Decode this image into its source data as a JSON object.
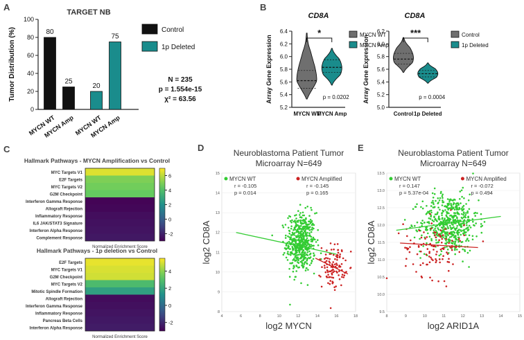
{
  "panel_labels": {
    "a": "A",
    "b": "B",
    "c": "C",
    "d": "D",
    "e": "E"
  },
  "colors": {
    "control": "#111111",
    "teal": "#1a8c8c",
    "gray": "#6f6f6f",
    "green": "#33cc33",
    "red": "#cc2222",
    "heat_high": "#fde725",
    "heat_mid": "#21918c",
    "heat_low": "#440154"
  },
  "chart_data": [
    {
      "id": "A",
      "type": "bar",
      "title": "TARGET NB",
      "ylabel": "Tumor Distribution (%)",
      "ylim": [
        0,
        100
      ],
      "yticks": [
        0,
        20,
        40,
        60,
        80,
        100
      ],
      "groups": [
        {
          "name": "Control",
          "categories": [
            "MYCN WT",
            "MYCN Amp"
          ],
          "values": [
            80,
            25
          ],
          "labels": [
            "80",
            "25"
          ]
        },
        {
          "name": "1p Deleted",
          "categories": [
            "MYCN WT",
            "MYCN Amp"
          ],
          "values": [
            20,
            75
          ],
          "labels": [
            "20",
            "75"
          ]
        }
      ],
      "legend": [
        "Control",
        "1p Deleted"
      ],
      "stats": [
        "N = 235",
        "p = 1.554e-15",
        "χ² = 63.56"
      ]
    },
    {
      "id": "B1",
      "type": "violin",
      "title": "CD8A",
      "ylabel": "Array Gene Expression",
      "ylim": [
        5.2,
        6.4
      ],
      "yticks": [
        "5.2",
        "5.4",
        "5.6",
        "5.8",
        "6.0",
        "6.2",
        "6.4"
      ],
      "categories": [
        "MYCN WT",
        "MYCN Amp"
      ],
      "violins": [
        {
          "min": 5.33,
          "max": 6.37,
          "median": 5.62,
          "q1": 5.5,
          "q3": 5.78,
          "mode": 5.62,
          "width": 0.55
        },
        {
          "min": 5.55,
          "max": 6.13,
          "median": 5.83,
          "q1": 5.75,
          "q3": 5.95,
          "mode": 5.82,
          "width": 0.6
        }
      ],
      "legend": [
        "MYCN WT",
        "MYCN Amp"
      ],
      "significance": "*",
      "p_value": "p = 0.0202"
    },
    {
      "id": "B2",
      "type": "violin",
      "title": "CD8A",
      "ylabel": "Array Gene Expression",
      "ylim": [
        5.0,
        6.2
      ],
      "yticks": [
        "5.0",
        "5.2",
        "5.4",
        "5.6",
        "5.8",
        "6.0",
        "6.2"
      ],
      "categories": [
        "Control",
        "1p Deleted"
      ],
      "violins": [
        {
          "min": 5.55,
          "max": 6.1,
          "median": 5.76,
          "q1": 5.68,
          "q3": 5.85,
          "mode": 5.78,
          "width": 0.55
        },
        {
          "min": 5.38,
          "max": 5.7,
          "median": 5.53,
          "q1": 5.48,
          "q3": 5.58,
          "mode": 5.53,
          "width": 0.6
        }
      ],
      "legend": [
        "Control",
        "1p Deleted"
      ],
      "significance": "***",
      "p_value": "p = 0.0004"
    },
    {
      "id": "C1",
      "type": "heatmap",
      "title": "Hallmark Pathways - MYCN Amplification vs Control",
      "rows": [
        "MYC Targets V1",
        "E2F Targets",
        "MYC Targets V2",
        "G2M Checkpoint",
        "Interferon Gamma Response",
        "Allograft Rejection",
        "Inflammatory Response",
        "IL6 JAK/STAT3 Signature",
        "Interferon Alpha Response",
        "Complement Response"
      ],
      "values": [
        6.5,
        5.0,
        4.8,
        4.6,
        -2.9,
        -2.8,
        -2.6,
        -2.5,
        -2.4,
        -2.3
      ],
      "xlabel": "Normalized Enrichment Score",
      "colorbar_range": [
        -3,
        7
      ],
      "colorbar_ticks": [
        "6",
        "4",
        "2",
        "0",
        "-2"
      ]
    },
    {
      "id": "C2",
      "type": "heatmap",
      "title": "Hallmark Pathways - 1p deletion vs Control",
      "rows": [
        "E2F Targets",
        "MYC Targets V1",
        "G2M Checkpoint",
        "MYC Targets V2",
        "Mitotic Spindle Formation",
        "Allograft Rejection",
        "Interferon Gamma Response",
        "Inflammatory Response",
        "Pancreas Beta Cells",
        "Interferon Alpha Response"
      ],
      "values": [
        5.2,
        5.0,
        4.9,
        2.8,
        1.8,
        -2.7,
        -2.6,
        -2.5,
        -2.4,
        -2.3
      ],
      "xlabel": "Normalized Enrichment Score",
      "colorbar_range": [
        -3,
        5.5
      ],
      "colorbar_ticks": [
        "4",
        "2",
        "0",
        "-2"
      ]
    },
    {
      "id": "D",
      "type": "scatter",
      "title": "Neuroblastoma Patient Tumor",
      "subtitle": "Microarray N=649",
      "xlabel": "log2 MYCN",
      "ylabel": "log2 CD8A",
      "xlim": [
        4,
        18
      ],
      "ylim": [
        8,
        15
      ],
      "xticks": [
        "4",
        "6",
        "8",
        "10",
        "12",
        "14",
        "16",
        "18"
      ],
      "yticks": [
        "8",
        "9",
        "10",
        "11",
        "12",
        "13",
        "14",
        "15"
      ],
      "series": [
        {
          "name": "MYCN WT",
          "color": "green",
          "r": "r = -0.105",
          "p": "p = 0.014",
          "n": 540,
          "xmean": 12.3,
          "xsd": 0.75,
          "ymean": 11.5,
          "ysd": 0.75,
          "fit": [
            [
              5.5,
              12.0
            ],
            [
              16.0,
              10.9
            ]
          ]
        },
        {
          "name": "MYCN Amplified",
          "color": "red",
          "r": "r = -0.145",
          "p": "p = 0.165",
          "n": 109,
          "xmean": 15.7,
          "xsd": 0.6,
          "ymean": 10.3,
          "ysd": 0.55,
          "fit": [
            [
              13.8,
              10.7
            ],
            [
              17.2,
              9.9
            ]
          ]
        }
      ]
    },
    {
      "id": "E",
      "type": "scatter",
      "title": "Neuroblastoma Patient Tumor",
      "subtitle": "Microarray N=649",
      "xlabel": "log2 ARID1A",
      "ylabel": "log2 CD8A",
      "xlim": [
        8,
        15
      ],
      "ylim": [
        9.5,
        13.5
      ],
      "xticks": [
        "8",
        "9",
        "10",
        "11",
        "12",
        "13",
        "14",
        "15"
      ],
      "yticks": [
        "9.5",
        "10.0",
        "10.5",
        "11.0",
        "11.5",
        "12.0",
        "12.5",
        "13.0",
        "13.5"
      ],
      "series": [
        {
          "name": "MYCN WT",
          "color": "green",
          "r": "r = 0.147",
          "p": "p = 5.37e-04",
          "n": 540,
          "xmean": 11.3,
          "xsd": 0.75,
          "ymean": 12.05,
          "ysd": 0.42,
          "fit": [
            [
              8.5,
              11.85
            ],
            [
              14.0,
              12.25
            ]
          ]
        },
        {
          "name": "MYCN Amplified",
          "color": "red",
          "r": "r = -0.072",
          "p": "p = 0.494",
          "n": 109,
          "xmean": 10.5,
          "xsd": 0.8,
          "ymean": 11.35,
          "ysd": 0.42,
          "fit": [
            [
              8.7,
              11.48
            ],
            [
              12.8,
              11.35
            ]
          ]
        }
      ]
    }
  ]
}
